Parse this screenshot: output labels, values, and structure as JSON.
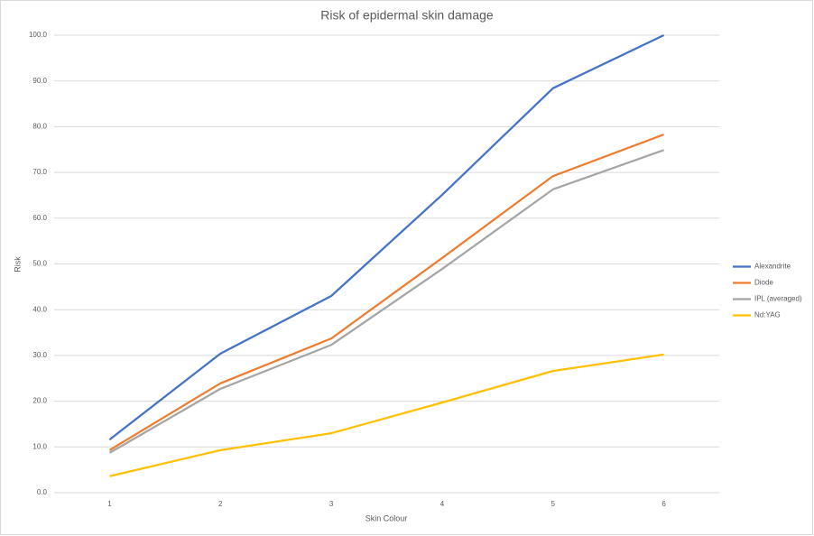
{
  "chart_data": {
    "type": "line",
    "title": "Risk of epidermal skin damage",
    "x_label": "Skin Colour",
    "y_label": "Risk",
    "categories": [
      "1",
      "2",
      "3",
      "4",
      "5",
      "6"
    ],
    "series": [
      {
        "name": "Alexandrite",
        "color": "#4472c4",
        "values": [
          11.6,
          30.4,
          43.0,
          65.1,
          88.4,
          100.0
        ]
      },
      {
        "name": "Diode",
        "color": "#ed7d31",
        "values": [
          9.3,
          23.9,
          33.7,
          51.3,
          69.2,
          78.3
        ]
      },
      {
        "name": "IPL (averaged)",
        "color": "#a5a5a5",
        "values": [
          8.7,
          22.7,
          32.3,
          48.9,
          66.3,
          74.9
        ]
      },
      {
        "name": "Nd:YAG",
        "color": "#ffc000",
        "values": [
          3.6,
          9.3,
          13.0,
          19.7,
          26.6,
          30.2
        ]
      }
    ],
    "ylim": [
      0,
      100
    ],
    "yticks": [
      {
        "value": 0,
        "label": "0.0"
      },
      {
        "value": 10,
        "label": "10.0"
      },
      {
        "value": 20,
        "label": "20.0"
      },
      {
        "value": 30,
        "label": "30.0"
      },
      {
        "value": 40,
        "label": "40.0"
      },
      {
        "value": 50,
        "label": "50.0"
      },
      {
        "value": 60,
        "label": "60.0"
      },
      {
        "value": 70,
        "label": "70.0"
      },
      {
        "value": 80,
        "label": "80.0"
      },
      {
        "value": 90,
        "label": "90.0"
      },
      {
        "value": 100,
        "label": "100.0"
      }
    ],
    "grid": true,
    "legend": "right"
  }
}
